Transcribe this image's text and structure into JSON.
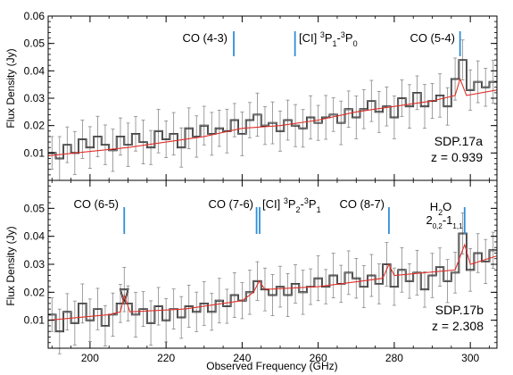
{
  "chart_data": [
    {
      "type": "line",
      "ylabel": "Flux Density (Jy)",
      "xlim": [
        189,
        307
      ],
      "ylim": [
        0.0,
        0.06
      ],
      "yticks": [
        "0.01",
        "0.02",
        "0.03",
        "0.04",
        "0.05",
        "0.06"
      ],
      "source": "SDP.17a",
      "redshift": "z = 0.939",
      "lines": [
        {
          "label": "CO (4-3)",
          "freq": 237.8
        },
        {
          "label": "[CI] 3P1-3P0",
          "freq": 253.9
        },
        {
          "label": "CO (5-4)",
          "freq": 297.3
        }
      ],
      "series": [
        {
          "values": [
            [
              190,
              0.01
            ],
            [
              192,
              0.008
            ],
            [
              194,
              0.013
            ],
            [
              196,
              0.01
            ],
            [
              198,
              0.015
            ],
            [
              200,
              0.012
            ],
            [
              202,
              0.016
            ],
            [
              204,
              0.013
            ],
            [
              206,
              0.011
            ],
            [
              208,
              0.016
            ],
            [
              210,
              0.013
            ],
            [
              212,
              0.017
            ],
            [
              214,
              0.014
            ],
            [
              216,
              0.012
            ],
            [
              218,
              0.018
            ],
            [
              220,
              0.015
            ],
            [
              222,
              0.017
            ],
            [
              224,
              0.012
            ],
            [
              226,
              0.019
            ],
            [
              228,
              0.016
            ],
            [
              230,
              0.02
            ],
            [
              232,
              0.017
            ],
            [
              234,
              0.019
            ],
            [
              236,
              0.018
            ],
            [
              238,
              0.022
            ],
            [
              240,
              0.017
            ],
            [
              242,
              0.022
            ],
            [
              244,
              0.024
            ],
            [
              246,
              0.02
            ],
            [
              248,
              0.021
            ],
            [
              250,
              0.018
            ],
            [
              252,
              0.022
            ],
            [
              254,
              0.02
            ],
            [
              256,
              0.019
            ],
            [
              258,
              0.023
            ],
            [
              260,
              0.021
            ],
            [
              262,
              0.023
            ],
            [
              264,
              0.024
            ],
            [
              266,
              0.021
            ],
            [
              268,
              0.026
            ],
            [
              270,
              0.023
            ],
            [
              272,
              0.026
            ],
            [
              274,
              0.029
            ],
            [
              276,
              0.025
            ],
            [
              278,
              0.027
            ],
            [
              280,
              0.023
            ],
            [
              282,
              0.03
            ],
            [
              284,
              0.027
            ],
            [
              286,
              0.032
            ],
            [
              288,
              0.027
            ],
            [
              290,
              0.029
            ],
            [
              292,
              0.031
            ],
            [
              294,
              0.027
            ],
            [
              296,
              0.037
            ],
            [
              298,
              0.044
            ],
            [
              300,
              0.033
            ],
            [
              302,
              0.036
            ],
            [
              304,
              0.034
            ],
            [
              306,
              0.036
            ]
          ]
        },
        {
          "values": [
            [
              189,
              0.009
            ],
            [
              210,
              0.012
            ],
            [
              230,
              0.016
            ],
            [
              240,
              0.019
            ],
            [
              250,
              0.02
            ],
            [
              260,
              0.022
            ],
            [
              270,
              0.025
            ],
            [
              280,
              0.027
            ],
            [
              290,
              0.029
            ],
            [
              296,
              0.031
            ],
            [
              297.3,
              0.037
            ],
            [
              299,
              0.031
            ],
            [
              307,
              0.033
            ]
          ]
        }
      ]
    },
    {
      "type": "line",
      "xlabel": "Observed Frequency (GHz)",
      "ylabel": "Flux Density (Jy)",
      "xlim": [
        189,
        307
      ],
      "ylim": [
        0.0,
        0.06
      ],
      "xticks": [
        "200",
        "220",
        "240",
        "260",
        "280",
        "300"
      ],
      "yticks": [
        "0.01",
        "0.02",
        "0.03",
        "0.04",
        "0.05"
      ],
      "source": "SDP.17b",
      "redshift": "z = 2.308",
      "lines": [
        {
          "label": "CO (6-5)",
          "freq": 209.0
        },
        {
          "label": "CO (7-6)",
          "freq": 243.8
        },
        {
          "label": "[CI] 3P2-3P1",
          "freq": 244.6
        },
        {
          "label": "CO (8-7)",
          "freq": 278.6
        },
        {
          "label": "H2O 2 0,2 - 1 1,1",
          "freq": 298.5
        }
      ],
      "series": [
        {
          "values": [
            [
              190,
              0.012
            ],
            [
              192,
              0.006
            ],
            [
              194,
              0.013
            ],
            [
              196,
              0.009
            ],
            [
              198,
              0.016
            ],
            [
              200,
              0.01
            ],
            [
              202,
              0.014
            ],
            [
              204,
              0.008
            ],
            [
              206,
              0.012
            ],
            [
              208,
              0.016
            ],
            [
              209,
              0.021
            ],
            [
              210,
              0.016
            ],
            [
              212,
              0.012
            ],
            [
              214,
              0.014
            ],
            [
              216,
              0.009
            ],
            [
              218,
              0.015
            ],
            [
              220,
              0.01
            ],
            [
              222,
              0.014
            ],
            [
              224,
              0.011
            ],
            [
              226,
              0.015
            ],
            [
              228,
              0.013
            ],
            [
              230,
              0.016
            ],
            [
              232,
              0.013
            ],
            [
              234,
              0.017
            ],
            [
              236,
              0.015
            ],
            [
              238,
              0.019
            ],
            [
              240,
              0.017
            ],
            [
              242,
              0.02
            ],
            [
              244,
              0.024
            ],
            [
              246,
              0.021
            ],
            [
              248,
              0.019
            ],
            [
              250,
              0.022
            ],
            [
              252,
              0.019
            ],
            [
              254,
              0.023
            ],
            [
              256,
              0.02
            ],
            [
              258,
              0.022
            ],
            [
              260,
              0.025
            ],
            [
              262,
              0.022
            ],
            [
              264,
              0.026
            ],
            [
              266,
              0.023
            ],
            [
              268,
              0.027
            ],
            [
              270,
              0.025
            ],
            [
              272,
              0.022
            ],
            [
              274,
              0.026
            ],
            [
              276,
              0.023
            ],
            [
              278,
              0.03
            ],
            [
              280,
              0.022
            ],
            [
              282,
              0.028
            ],
            [
              284,
              0.024
            ],
            [
              286,
              0.027
            ],
            [
              288,
              0.021
            ],
            [
              290,
              0.026
            ],
            [
              292,
              0.029
            ],
            [
              294,
              0.024
            ],
            [
              296,
              0.027
            ],
            [
              298,
              0.041
            ],
            [
              300,
              0.028
            ],
            [
              302,
              0.034
            ],
            [
              304,
              0.031
            ],
            [
              306,
              0.035
            ]
          ]
        },
        {
          "values": [
            [
              189,
              0.01
            ],
            [
              205,
              0.012
            ],
            [
              208,
              0.013
            ],
            [
              209,
              0.019
            ],
            [
              210.5,
              0.013
            ],
            [
              225,
              0.014
            ],
            [
              240,
              0.017
            ],
            [
              243,
              0.02
            ],
            [
              244.5,
              0.024
            ],
            [
              246,
              0.021
            ],
            [
              260,
              0.022
            ],
            [
              277,
              0.025
            ],
            [
              278.6,
              0.03
            ],
            [
              280,
              0.026
            ],
            [
              296,
              0.028
            ],
            [
              298.5,
              0.037
            ],
            [
              300,
              0.03
            ],
            [
              307,
              0.033
            ]
          ]
        }
      ]
    }
  ]
}
